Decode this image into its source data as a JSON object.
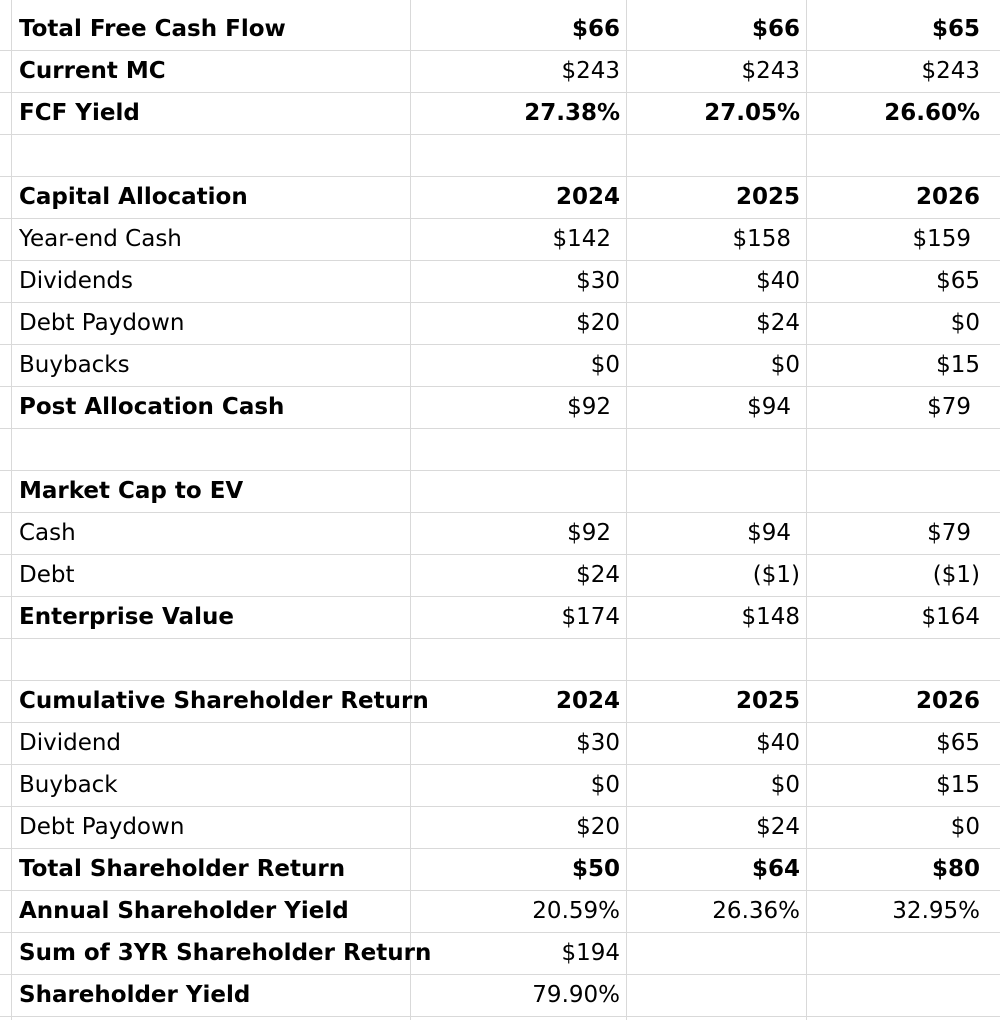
{
  "rows": [
    {
      "label": "Total Free Cash Flow",
      "v": [
        "$66",
        "$66",
        "$65"
      ],
      "bold_label": true,
      "bold_values": true
    },
    {
      "label": "Current MC",
      "v": [
        "$243",
        "$243",
        "$243"
      ],
      "bold_label": true,
      "bold_values": false
    },
    {
      "label": "FCF Yield",
      "v": [
        "27.38%",
        "27.05%",
        "26.60%"
      ],
      "bold_label": true,
      "bold_values": true
    },
    {
      "label": "",
      "v": [
        "",
        "",
        ""
      ]
    },
    {
      "label": "Capital Allocation",
      "v": [
        "2024",
        "2025",
        "2026"
      ],
      "bold_label": true,
      "bold_values": true
    },
    {
      "label": "Year-end Cash",
      "v": [
        "$142",
        "$158",
        "$159"
      ],
      "paren": true
    },
    {
      "label": "Dividends",
      "v": [
        "$30",
        "$40",
        "$65"
      ]
    },
    {
      "label": "Debt Paydown",
      "v": [
        "$20",
        "$24",
        "$0"
      ]
    },
    {
      "label": "Buybacks",
      "v": [
        "$0",
        "$0",
        "$15"
      ]
    },
    {
      "label": "Post Allocation Cash",
      "v": [
        "$92",
        "$94",
        "$79"
      ],
      "bold_label": true,
      "paren": true
    },
    {
      "label": "",
      "v": [
        "",
        "",
        ""
      ]
    },
    {
      "label": "Market Cap to EV",
      "v": [
        "",
        "",
        ""
      ],
      "bold_label": true
    },
    {
      "label": "Cash",
      "v": [
        "$92",
        "$94",
        "$79"
      ],
      "paren": true
    },
    {
      "label": "Debt",
      "v": [
        "$24",
        "($1)",
        "($1)"
      ]
    },
    {
      "label": "Enterprise Value",
      "v": [
        "$174",
        "$148",
        "$164"
      ],
      "bold_label": true
    },
    {
      "label": "",
      "v": [
        "",
        "",
        ""
      ]
    },
    {
      "label": "Cumulative Shareholder Return",
      "v": [
        "2024",
        "2025",
        "2026"
      ],
      "bold_label": true,
      "bold_values": true
    },
    {
      "label": "Dividend",
      "v": [
        "$30",
        "$40",
        "$65"
      ]
    },
    {
      "label": "Buyback",
      "v": [
        "$0",
        "$0",
        "$15"
      ]
    },
    {
      "label": "Debt Paydown",
      "v": [
        "$20",
        "$24",
        "$0"
      ]
    },
    {
      "label": "Total Shareholder Return",
      "v": [
        "$50",
        "$64",
        "$80"
      ],
      "bold_label": true,
      "bold_values": true
    },
    {
      "label": "Annual Shareholder Yield",
      "v": [
        "20.59%",
        "26.36%",
        "32.95%"
      ],
      "bold_label": true
    },
    {
      "label": "Sum of 3YR Shareholder Return",
      "v": [
        "$194",
        "",
        ""
      ],
      "bold_label": true
    },
    {
      "label": "Shareholder Yield",
      "v": [
        "79.90%",
        "",
        ""
      ],
      "bold_label": true
    }
  ],
  "colors": {
    "gridline": "#d9d9d9",
    "text": "#000000",
    "background": "#ffffff"
  }
}
